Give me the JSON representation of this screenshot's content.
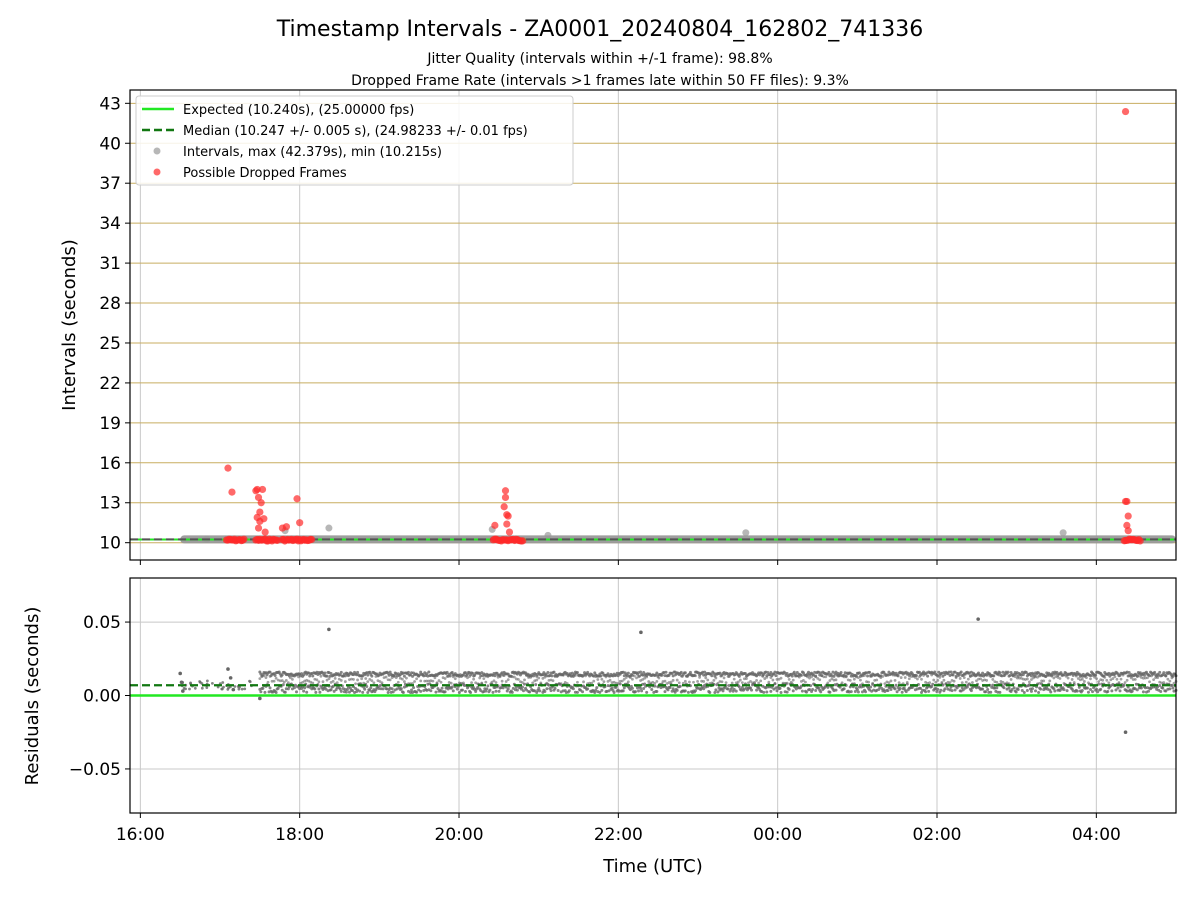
{
  "title": "Timestamp Intervals - ZA0001_20240804_162802_741336",
  "subtitle_1": "Jitter Quality (intervals within +/-1 frame): 98.8%",
  "subtitle_2": "Dropped Frame Rate (intervals >1 frames late within 50 FF files): 9.3%",
  "colors": {
    "expected": "#22e822",
    "median": "#117711",
    "interval_points": "#999999",
    "dropped_points": "#ff2a2a",
    "hgrid_top": "#c8ad60",
    "grid": "#c8c8c8",
    "residual_points": "#666666",
    "median_band": "#555555"
  },
  "chart_data": [
    {
      "type": "scatter",
      "ylabel": "Intervals (seconds)",
      "yticks": [
        "10",
        "13",
        "16",
        "19",
        "22",
        "25",
        "28",
        "31",
        "34",
        "37",
        "40",
        "43"
      ],
      "ylim": [
        8.7,
        44.0
      ],
      "xlim_hours": [
        15.87,
        29.0
      ],
      "grid": "horizontal lines at y ticks; vertical lines at x ticks",
      "legend_position": "upper-left",
      "legend": [
        "Expected (10.240s), (25.00000 fps)",
        "Median (10.247 +/- 0.005 s), (24.98233 +/- 0.01 fps)",
        "Intervals, max (42.379s), min (10.215s)",
        "Possible Dropped Frames"
      ],
      "series": [
        {
          "name": "Expected (10.240s), (25.00000 fps)",
          "kind": "hline",
          "y": 10.24
        },
        {
          "name": "Median (10.247 +/- 0.005 s), (24.98233 +/- 0.01 fps)",
          "kind": "dashed-hline",
          "y": 10.247
        },
        {
          "name": "Intervals, max (42.379s), min (10.215s)",
          "kind": "points",
          "baseline_range_hours": [
            16.5,
            29.0
          ],
          "baseline_y": 10.247,
          "outliers": [
            {
              "x": "16:50",
              "y": 10.27
            },
            {
              "x": "17:49",
              "y": 10.9
            },
            {
              "x": "18:22",
              "y": 11.1
            },
            {
              "x": "20:25",
              "y": 11.0
            },
            {
              "x": "21:07",
              "y": 10.55
            },
            {
              "x": "23:36",
              "y": 10.75
            },
            {
              "x": "03:35",
              "y": 10.75
            }
          ]
        },
        {
          "name": "Possible Dropped Frames",
          "kind": "points",
          "baseline_clusters_hours": [
            [
              17.08,
              17.3
            ],
            [
              17.45,
              17.72
            ],
            [
              17.78,
              18.15
            ],
            [
              20.43,
              20.8
            ],
            [
              28.35,
              28.55
            ]
          ],
          "baseline_y": 10.2,
          "points": [
            {
              "x": "17:06",
              "y": 15.6
            },
            {
              "x": "17:09",
              "y": 13.8
            },
            {
              "x": "17:27",
              "y": 13.9
            },
            {
              "x": "17:28",
              "y": 14.0
            },
            {
              "x": "17:29",
              "y": 13.4
            },
            {
              "x": "17:30",
              "y": 12.3
            },
            {
              "x": "17:31",
              "y": 13.0
            },
            {
              "x": "17:32",
              "y": 14.0
            },
            {
              "x": "17:28",
              "y": 11.9
            },
            {
              "x": "17:30",
              "y": 11.6
            },
            {
              "x": "17:29",
              "y": 11.1
            },
            {
              "x": "17:33",
              "y": 11.8
            },
            {
              "x": "17:34",
              "y": 10.8
            },
            {
              "x": "17:47",
              "y": 11.1
            },
            {
              "x": "17:50",
              "y": 11.2
            },
            {
              "x": "17:58",
              "y": 13.3
            },
            {
              "x": "18:00",
              "y": 11.5
            },
            {
              "x": "20:27",
              "y": 11.3
            },
            {
              "x": "20:34",
              "y": 12.7
            },
            {
              "x": "20:35",
              "y": 13.9
            },
            {
              "x": "20:35",
              "y": 13.4
            },
            {
              "x": "20:36",
              "y": 12.1
            },
            {
              "x": "20:37",
              "y": 12.0
            },
            {
              "x": "20:36",
              "y": 11.4
            },
            {
              "x": "20:38",
              "y": 10.8
            },
            {
              "x": "04:22",
              "y": 42.38
            },
            {
              "x": "04:22",
              "y": 13.1
            },
            {
              "x": "04:23",
              "y": 13.1
            },
            {
              "x": "04:24",
              "y": 12.0
            },
            {
              "x": "04:23",
              "y": 11.3
            },
            {
              "x": "04:24",
              "y": 10.9
            }
          ]
        }
      ]
    },
    {
      "type": "scatter",
      "ylabel": "Residuals (seconds)",
      "xlabel": "Time (UTC)",
      "yticks": [
        "0.05",
        "0.00",
        "−0.05"
      ],
      "ylim": [
        -0.08,
        0.08
      ],
      "xticks": [
        "16:00",
        "18:00",
        "20:00",
        "22:00",
        "00:00",
        "02:00",
        "04:00"
      ],
      "xlim_hours": [
        15.87,
        29.0
      ],
      "grid": "horizontal lines at y ticks; vertical lines at x ticks",
      "series": [
        {
          "name": "expected",
          "kind": "hline",
          "y": 0.0
        },
        {
          "name": "median",
          "kind": "dashed-hline",
          "y": 0.007
        },
        {
          "name": "residuals",
          "kind": "points",
          "band_hours": [
            17.5,
            29.0
          ],
          "band_y": [
            0.0,
            0.016
          ],
          "points": [
            {
              "x": "16:30",
              "y": 0.015
            },
            {
              "x": "16:31",
              "y": 0.009
            },
            {
              "x": "16:32",
              "y": 0.003
            },
            {
              "x": "17:06",
              "y": 0.018
            },
            {
              "x": "17:08",
              "y": 0.012
            },
            {
              "x": "17:10",
              "y": 0.004
            },
            {
              "x": "17:30",
              "y": -0.002
            },
            {
              "x": "18:22",
              "y": 0.045
            },
            {
              "x": "22:17",
              "y": 0.043
            },
            {
              "x": "02:31",
              "y": 0.052
            },
            {
              "x": "04:22",
              "y": -0.025
            }
          ]
        }
      ]
    }
  ]
}
